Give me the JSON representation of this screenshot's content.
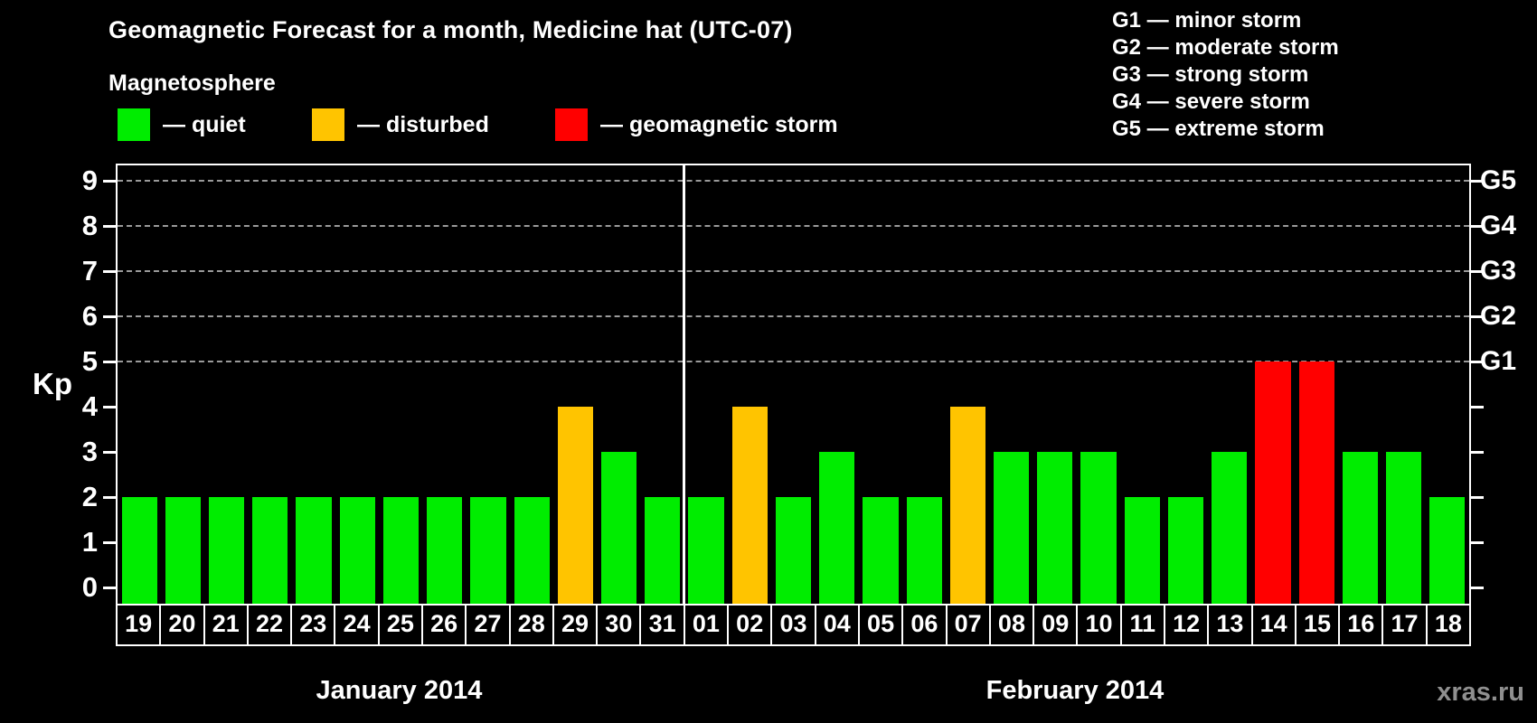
{
  "header": {
    "title": "Geomagnetic Forecast for a month, Medicine hat (UTC-07)",
    "subtitle": "Magnetosphere"
  },
  "legend": [
    {
      "key": "quiet",
      "label": "— quiet",
      "color": "#00ED00"
    },
    {
      "key": "disturbed",
      "label": "— disturbed",
      "color": "#FFC400"
    },
    {
      "key": "storm",
      "label": "— geomagnetic storm",
      "color": "#FF0000"
    }
  ],
  "g_legend": [
    "G1 — minor storm",
    "G2 — moderate storm",
    "G3 — strong storm",
    "G4 — severe storm",
    "G5 — extreme storm"
  ],
  "watermark": "xras.ru",
  "chart_data": {
    "type": "bar",
    "title": "Geomagnetic Forecast for a month, Medicine hat (UTC-07)",
    "ylabel": "Kp",
    "ylim": [
      0,
      9
    ],
    "yticks": [
      0,
      1,
      2,
      3,
      4,
      5,
      6,
      7,
      8,
      9
    ],
    "gridlines_at": [
      5,
      6,
      7,
      8,
      9
    ],
    "right_axis_labels": [
      {
        "value": 5,
        "label": "G1"
      },
      {
        "value": 6,
        "label": "G2"
      },
      {
        "value": 7,
        "label": "G3"
      },
      {
        "value": 8,
        "label": "G4"
      },
      {
        "value": 9,
        "label": "G5"
      }
    ],
    "months": [
      {
        "label": "January 2014",
        "days": 13
      },
      {
        "label": "February 2014",
        "days": 18
      }
    ],
    "categories": [
      "19",
      "20",
      "21",
      "22",
      "23",
      "24",
      "25",
      "26",
      "27",
      "28",
      "29",
      "30",
      "31",
      "01",
      "02",
      "03",
      "04",
      "05",
      "06",
      "07",
      "08",
      "09",
      "10",
      "11",
      "12",
      "13",
      "14",
      "15",
      "16",
      "17",
      "18"
    ],
    "values": [
      2,
      2,
      2,
      2,
      2,
      2,
      2,
      2,
      2,
      2,
      4,
      3,
      2,
      2,
      4,
      2,
      3,
      2,
      2,
      4,
      3,
      3,
      3,
      2,
      2,
      3,
      5,
      5,
      3,
      3,
      2
    ],
    "status": [
      "quiet",
      "quiet",
      "quiet",
      "quiet",
      "quiet",
      "quiet",
      "quiet",
      "quiet",
      "quiet",
      "quiet",
      "disturbed",
      "quiet",
      "quiet",
      "quiet",
      "disturbed",
      "quiet",
      "quiet",
      "quiet",
      "quiet",
      "disturbed",
      "quiet",
      "quiet",
      "quiet",
      "quiet",
      "quiet",
      "quiet",
      "storm",
      "storm",
      "quiet",
      "quiet",
      "quiet"
    ]
  }
}
